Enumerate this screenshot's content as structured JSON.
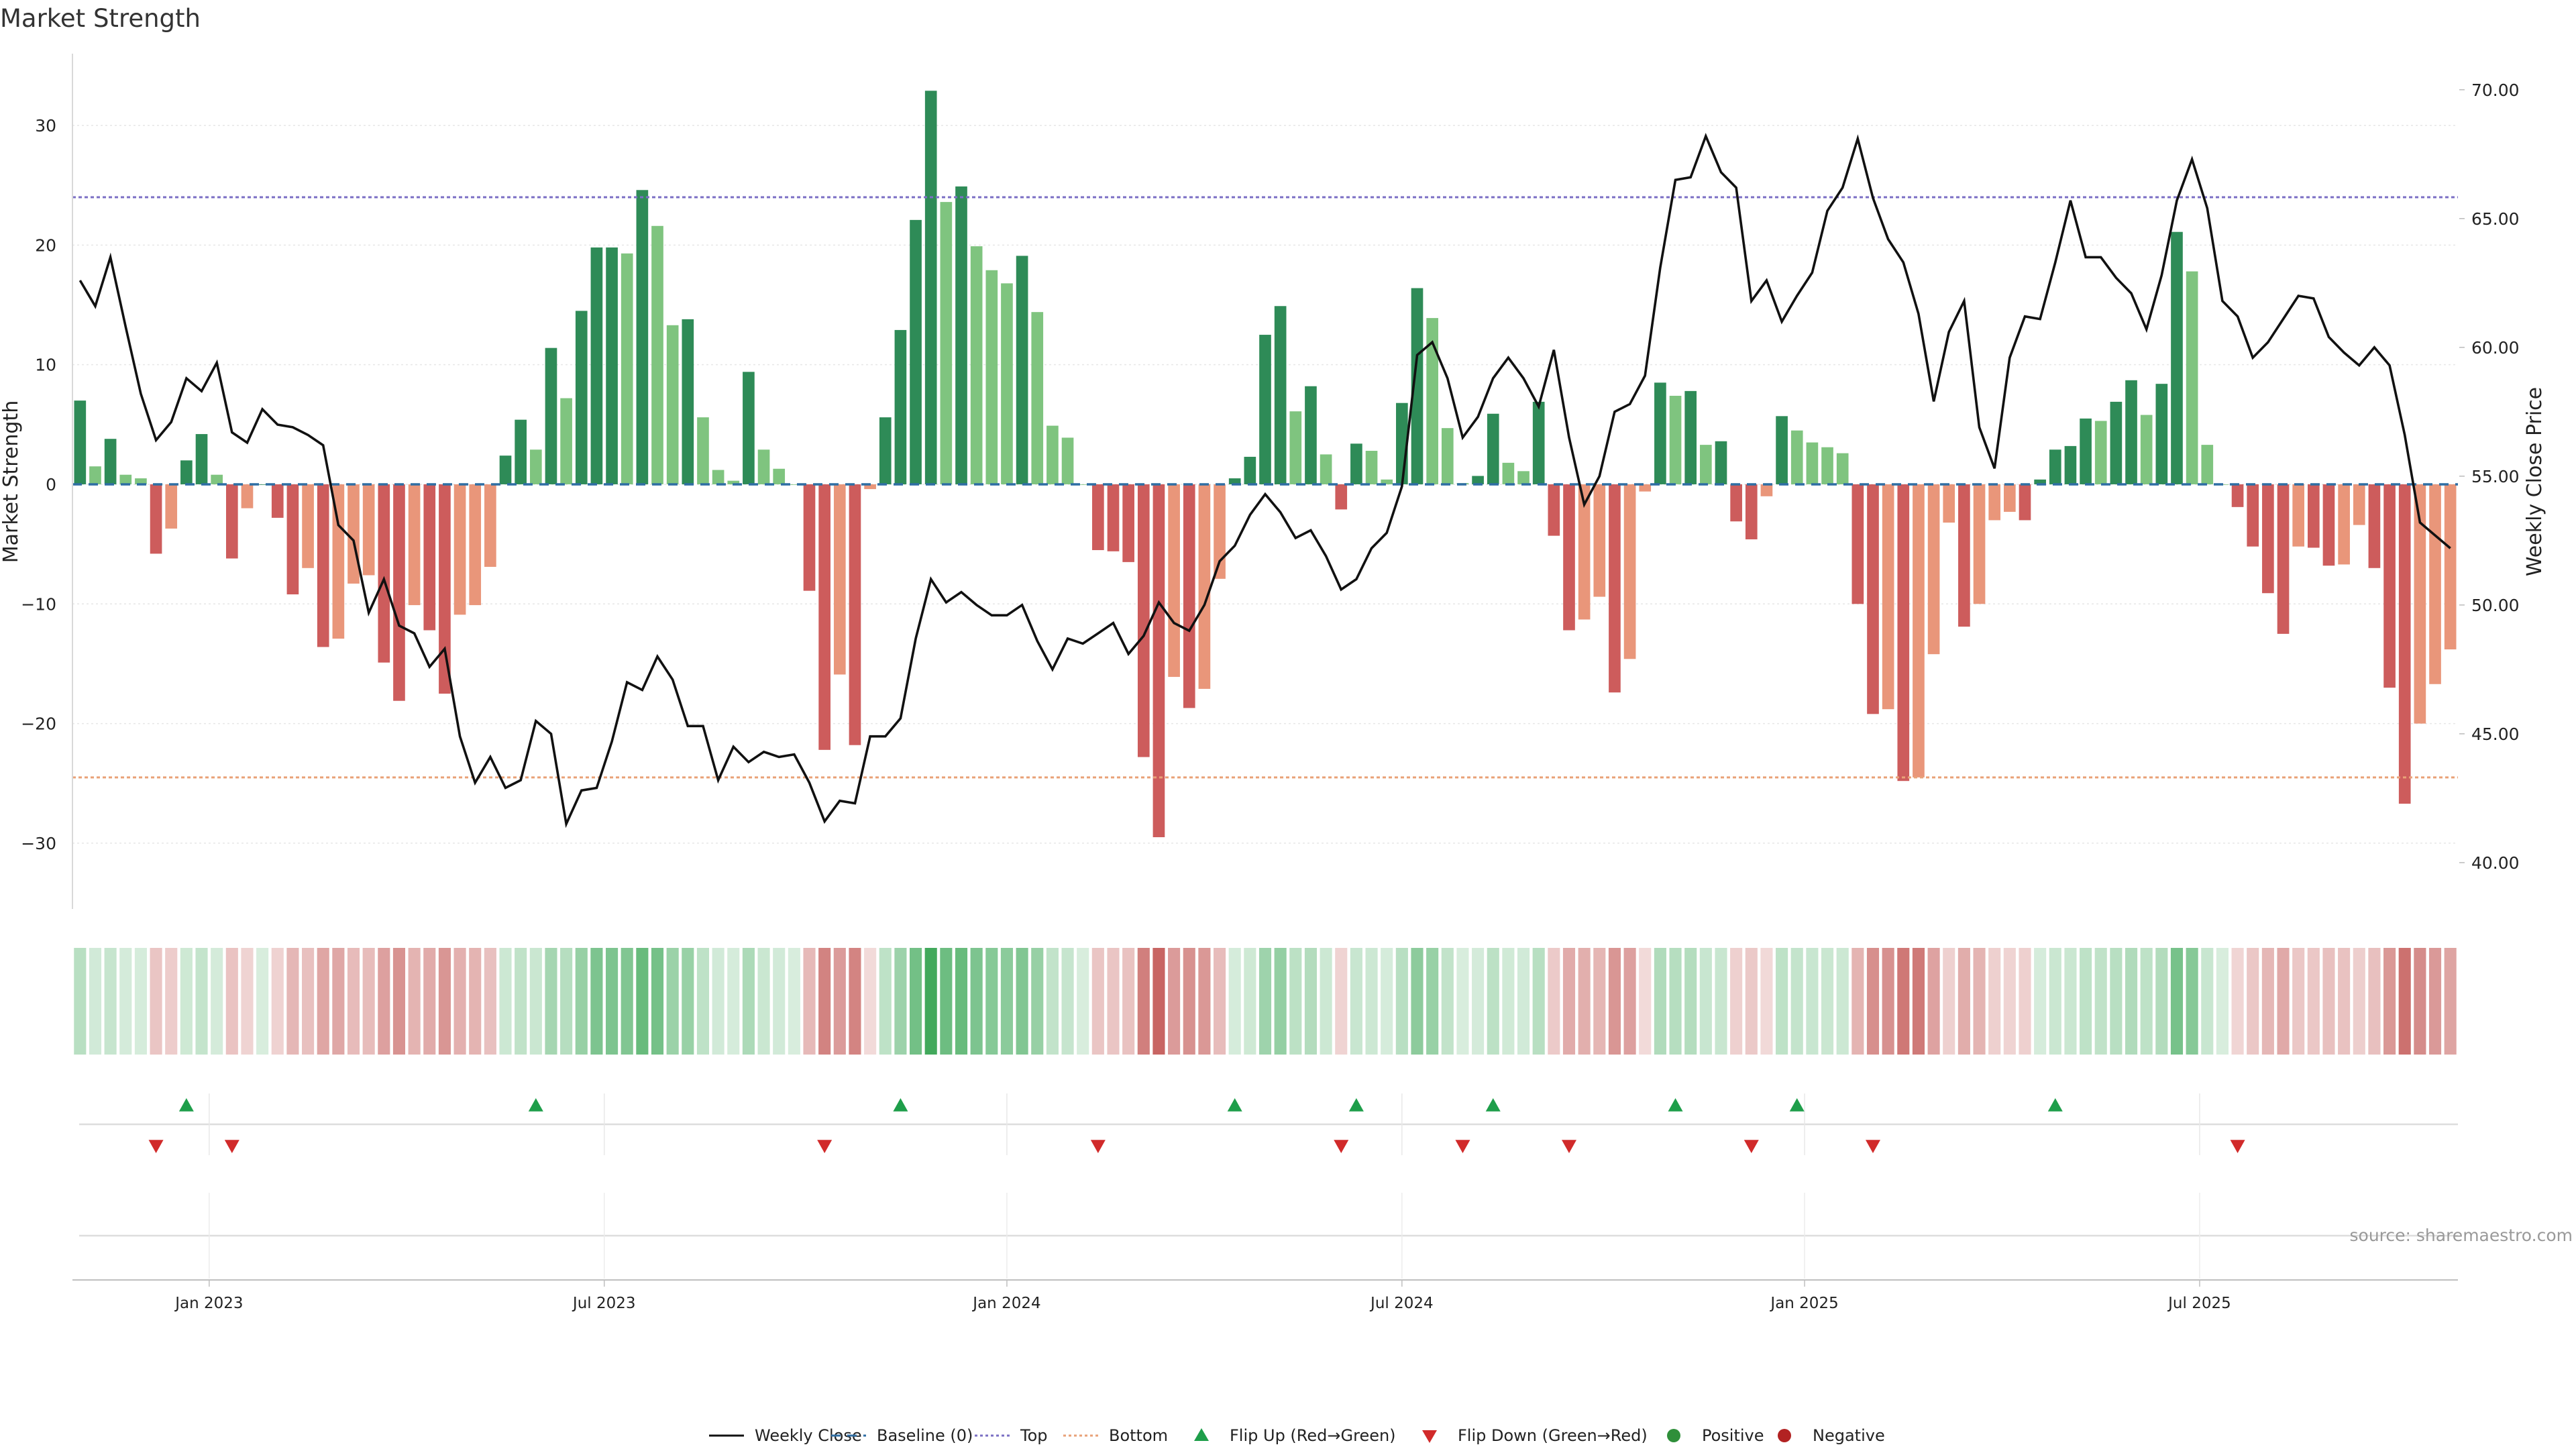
{
  "chart_data": {
    "type": "bar",
    "title": "Market Strength",
    "ylabel_left": "Market Strength",
    "ylabel_right": "Weekly Close Price",
    "source": "source: sharemaestro.com",
    "left_axis": {
      "range": [
        -35.5,
        36
      ],
      "ticks": [
        -30,
        -20,
        -10,
        0,
        10,
        20,
        30
      ],
      "tick_labels": [
        "−30",
        "−20",
        "−10",
        "0",
        "10",
        "20",
        "30"
      ]
    },
    "right_axis": {
      "range": [
        38.2,
        71.4
      ],
      "ticks": [
        40,
        45,
        50,
        55,
        60,
        65,
        70
      ],
      "tick_labels": [
        "40.00",
        "45.00",
        "50.00",
        "55.00",
        "60.00",
        "65.00",
        "70.00"
      ]
    },
    "x_ticks": [
      {
        "label": "Jan 2023",
        "week": 8.5
      },
      {
        "label": "Jul 2023",
        "week": 34.5
      },
      {
        "label": "Jan 2024",
        "week": 61
      },
      {
        "label": "Jul 2024",
        "week": 87
      },
      {
        "label": "Jan 2025",
        "week": 113.5
      },
      {
        "label": "Jul 2025",
        "week": 139.5
      }
    ],
    "x_range": [
      -0.5,
      156.5
    ],
    "top_level": 24,
    "bottom_level": -24.5,
    "strength": [
      7,
      1.5,
      3.8,
      0.8,
      0.5,
      -5.8,
      -3.7,
      2,
      4.2,
      0.8,
      -6.2,
      -2,
      0,
      -2.8,
      -9.2,
      -7,
      -13.6,
      -12.9,
      -8.3,
      -7.6,
      -14.9,
      -18.1,
      -10.1,
      -12.2,
      -17.5,
      -10.9,
      -10.1,
      -6.9,
      2.4,
      5.4,
      2.9,
      11.4,
      7.2,
      14.5,
      19.8,
      19.8,
      19.3,
      24.6,
      21.6,
      13.3,
      13.8,
      5.6,
      1.2,
      0.3,
      9.4,
      2.9,
      1.3,
      0,
      -8.9,
      -22.2,
      -15.9,
      -21.8,
      -0.4,
      5.6,
      12.9,
      22.1,
      32.9,
      23.6,
      24.9,
      19.9,
      17.9,
      16.8,
      19.1,
      14.4,
      4.9,
      3.9,
      0,
      -5.5,
      -5.6,
      -6.5,
      -22.8,
      -29.5,
      -16.1,
      -18.7,
      -17.1,
      -7.9,
      0.5,
      2.3,
      12.5,
      14.9,
      6.1,
      8.2,
      2.5,
      -2.1,
      3.4,
      2.8,
      0.4,
      6.8,
      16.4,
      13.9,
      4.7,
      0.1,
      0.7,
      5.9,
      1.8,
      1.1,
      6.9,
      -4.3,
      -12.2,
      -11.3,
      -9.4,
      -17.4,
      -14.6,
      -0.6,
      8.5,
      7.4,
      7.8,
      3.3,
      3.6,
      -3.1,
      -4.6,
      -1,
      5.7,
      4.5,
      3.5,
      3.1,
      2.6,
      -10,
      -19.2,
      -18.8,
      -24.8,
      -24.5,
      -14.2,
      -3.2,
      -11.9,
      -10,
      -3,
      -2.3,
      -3,
      0.4,
      2.9,
      3.2,
      5.5,
      5.3,
      6.9,
      8.7,
      5.8,
      8.4,
      21.1,
      17.8,
      3.3,
      0,
      -1.9,
      -5.2,
      -9.1,
      -12.5,
      -5.2,
      -5.3,
      -6.8,
      -6.7,
      -3.4,
      -7,
      -17,
      -26.7,
      -20,
      -16.7,
      -13.8
    ],
    "weekly_close": [
      62.6,
      61.6,
      63.5,
      60.8,
      58.2,
      56.4,
      57.1,
      58.8,
      58.3,
      59.4,
      56.7,
      56.3,
      57.6,
      57,
      56.9,
      56.6,
      56.2,
      53.1,
      52.5,
      49.7,
      51,
      49.2,
      48.9,
      47.6,
      48.3,
      44.9,
      43.1,
      44.1,
      42.9,
      43.2,
      45.5,
      45,
      41.5,
      42.8,
      42.9,
      44.7,
      47,
      46.7,
      48,
      47.1,
      45.3,
      45.3,
      43.2,
      44.5,
      43.9,
      44.3,
      44.1,
      44.2,
      43.1,
      41.6,
      42.4,
      42.3,
      44.9,
      44.9,
      45.6,
      48.7,
      51,
      50.1,
      50.5,
      50,
      49.6,
      49.6,
      50,
      48.6,
      47.5,
      48.7,
      48.5,
      48.9,
      49.3,
      48.1,
      48.8,
      50.1,
      49.3,
      49,
      50,
      51.7,
      52.3,
      53.5,
      54.3,
      53.6,
      52.6,
      52.9,
      51.9,
      50.6,
      51,
      52.2,
      52.8,
      54.6,
      59.7,
      60.2,
      58.8,
      56.5,
      57.3,
      58.8,
      59.6,
      58.8,
      57.7,
      59.9,
      56.5,
      53.9,
      55,
      57.5,
      57.8,
      58.9,
      63.1,
      66.5,
      66.6,
      68.2,
      66.8,
      66.2,
      61.8,
      62.6,
      61,
      62,
      62.9,
      65.3,
      66.2,
      68.1,
      65.8,
      64.2,
      63.3,
      61.3,
      57.9,
      60.6,
      61.8,
      56.9,
      55.3,
      59.6,
      61.2,
      61.1,
      63.3,
      65.7,
      63.5,
      63.5,
      62.7,
      62.1,
      60.7,
      62.8,
      65.7,
      67.3,
      65.4,
      61.8,
      61.2,
      59.6,
      60.2,
      61.1,
      62,
      61.9,
      60.4,
      59.8,
      59.3,
      60,
      59.3,
      56.6,
      53.2,
      52.7,
      52.2
    ],
    "baseline": 0,
    "flip_up_weeks": [
      7,
      30,
      54,
      76,
      84,
      93,
      105,
      113,
      130
    ],
    "flip_down_weeks": [
      5,
      10,
      49,
      67,
      83,
      91,
      98,
      110,
      118,
      142
    ],
    "legend": [
      {
        "label": "Weekly Close",
        "kind": "line-solid",
        "color": "#111111"
      },
      {
        "label": "Baseline (0)",
        "kind": "line-dashed",
        "color": "#2f6ea4"
      },
      {
        "label": "Top",
        "kind": "line-dotted",
        "color": "#7b6fc4"
      },
      {
        "label": "Bottom",
        "kind": "line-dotted",
        "color": "#e9a278"
      },
      {
        "label": "Flip Up (Red→Green)",
        "kind": "triangle-up",
        "color": "#1e9e4a"
      },
      {
        "label": "Flip Down (Green→Red)",
        "kind": "triangle-down",
        "color": "#d12a2a"
      },
      {
        "label": "Positive",
        "kind": "circle",
        "color": "#2f8f3a"
      },
      {
        "label": "Negative",
        "kind": "circle",
        "color": "#b22222"
      }
    ],
    "colors": {
      "pos_rising": "#2e8b57",
      "pos_falling": "#7fc47f",
      "neg_falling": "#cd5c5c",
      "neg_rising": "#e9967a",
      "top_line": "#7b6fc4",
      "bottom_line": "#e9a278",
      "baseline": "#2f6ea4",
      "price_line": "#111111",
      "flip_up": "#1e9e4a",
      "flip_down": "#d12a2a",
      "heat_green": "#3aa655",
      "heat_red": "#c0504d"
    }
  }
}
